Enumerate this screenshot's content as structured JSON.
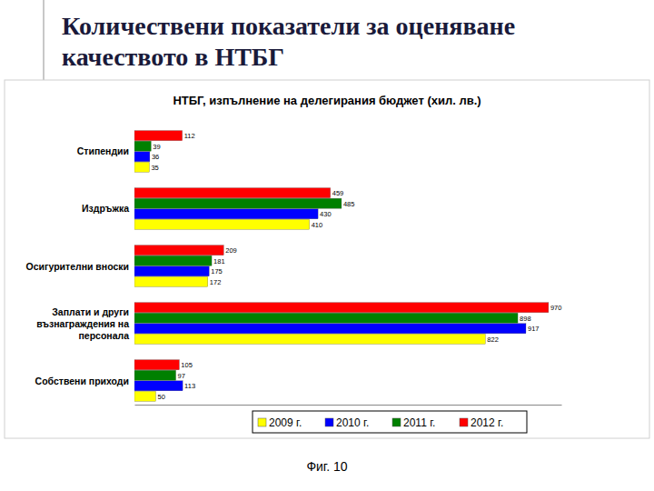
{
  "slide": {
    "title": [
      "Количествени показатели за оценяване",
      "качеството в НТБГ"
    ],
    "caption": "Фиг. 10"
  },
  "chart_data": {
    "type": "bar",
    "orientation": "horizontal",
    "title": "НТБГ, изпълнение на делегирания бюджет (хил. лв.)",
    "categories": [
      "Стипендии",
      "Издръжка",
      "Осигурителни вноски",
      "Заплати и други възнаграждения на персонала",
      "Собствени приходи"
    ],
    "series": [
      {
        "name": "2009 г.",
        "color": "#ffff00",
        "values": [
          35,
          410,
          172,
          822,
          50
        ]
      },
      {
        "name": "2010 г.",
        "color": "#0000ff",
        "values": [
          36,
          430,
          175,
          917,
          113
        ]
      },
      {
        "name": "2011 г.",
        "color": "#008000",
        "values": [
          39,
          485,
          181,
          898,
          97
        ]
      },
      {
        "name": "2012 г.",
        "color": "#ff0000",
        "values": [
          112,
          459,
          209,
          970,
          105
        ]
      }
    ],
    "xlim": [
      0,
      1000
    ],
    "xticks": [],
    "tick_labels": "y",
    "data_labels": true,
    "legend": "bottom",
    "grid": false
  }
}
